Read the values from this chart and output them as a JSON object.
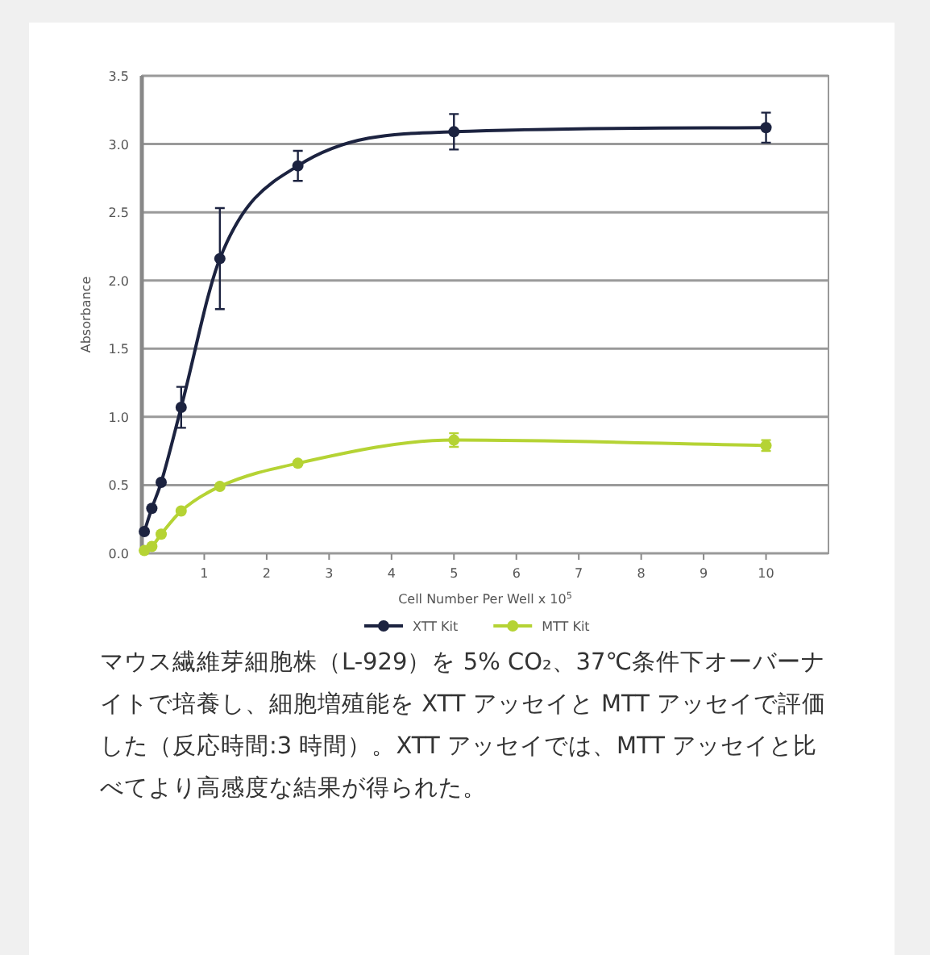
{
  "chart_data": {
    "type": "line",
    "xlabel": "Cell Number Per Well x 10$^{5}$",
    "ylabel": "Absorbance",
    "xlim": [
      0,
      11
    ],
    "xticks": [
      1,
      2,
      3,
      4,
      5,
      6,
      7,
      8,
      9,
      10
    ],
    "ylim": [
      0,
      3.5
    ],
    "yticks": [
      {
        "value": 0,
        "label": "0.0"
      },
      {
        "value": 0.5,
        "label": "0.5"
      },
      {
        "value": 1,
        "label": "1.0"
      },
      {
        "value": 1.5,
        "label": "1.5"
      },
      {
        "value": 2,
        "label": "2.0"
      },
      {
        "value": 2.5,
        "label": "2.5"
      },
      {
        "value": 3,
        "label": "3.0"
      },
      {
        "value": 3.5,
        "label": "3.5"
      }
    ],
    "grid": "y",
    "legend": "bottom",
    "marker": "circle",
    "line_style": "solid",
    "series": [
      {
        "name": "XTT Kit",
        "color": "#1c2340",
        "x": [
          0.04,
          0.16,
          0.31,
          0.63,
          1.25,
          2.5,
          5,
          10
        ],
        "values": [
          0.16,
          0.33,
          0.52,
          1.07,
          2.16,
          2.84,
          3.09,
          3.12
        ],
        "errors": [
          null,
          null,
          null,
          0.15,
          0.37,
          0.11,
          0.13,
          0.11
        ]
      },
      {
        "name": "MTT Kit",
        "color": "#b5d334",
        "x": [
          0.04,
          0.16,
          0.31,
          0.63,
          1.25,
          2.5,
          5,
          10
        ],
        "values": [
          0.02,
          0.05,
          0.14,
          0.31,
          0.49,
          0.66,
          0.83,
          0.79
        ],
        "errors": [
          null,
          null,
          null,
          null,
          null,
          null,
          0.05,
          0.04
        ]
      }
    ],
    "annotations": [
      "マウス繊維芽細胞株（L-929）を 5% CO₂、37℃条件下オーバーナイトで培養し、細胞増殖能を XTT アッセイと MTT アッセイで評価した（反応時間:3 時間）。XTT アッセイでは、MTT アッセイと比べてより高感度な結果が得られた。"
    ]
  }
}
